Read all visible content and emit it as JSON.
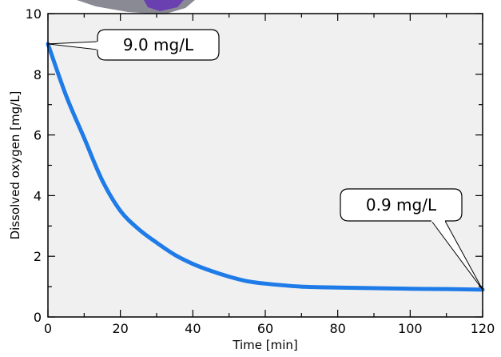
{
  "chart_data": {
    "type": "line",
    "title": "",
    "xlabel": "Time  [min]",
    "ylabel": "Dissolved oxygen  [mg/L]",
    "xlim": [
      0,
      120
    ],
    "ylim": [
      0,
      10
    ],
    "x_ticks": [
      "0",
      "20",
      "40",
      "60",
      "80",
      "100",
      "120"
    ],
    "y_ticks": [
      "0",
      "2",
      "4",
      "6",
      "8",
      "10"
    ],
    "grid": false,
    "background_color": "#f0f0f0",
    "series": [
      {
        "color": "#1e7be8",
        "x": [
          0,
          5,
          10,
          15,
          20,
          25,
          30,
          35,
          40,
          45,
          50,
          55,
          60,
          70,
          80,
          90,
          100,
          110,
          120
        ],
        "y": [
          9.0,
          7.3,
          5.9,
          4.5,
          3.5,
          2.9,
          2.45,
          2.05,
          1.75,
          1.52,
          1.33,
          1.18,
          1.1,
          1.0,
          0.97,
          0.95,
          0.93,
          0.92,
          0.9
        ]
      }
    ],
    "annotations": [
      {
        "text": "9.0 mg/L",
        "x": 0,
        "y": 9.0
      },
      {
        "text": "0.9 mg/L",
        "x": 120,
        "y": 0.9
      }
    ]
  }
}
